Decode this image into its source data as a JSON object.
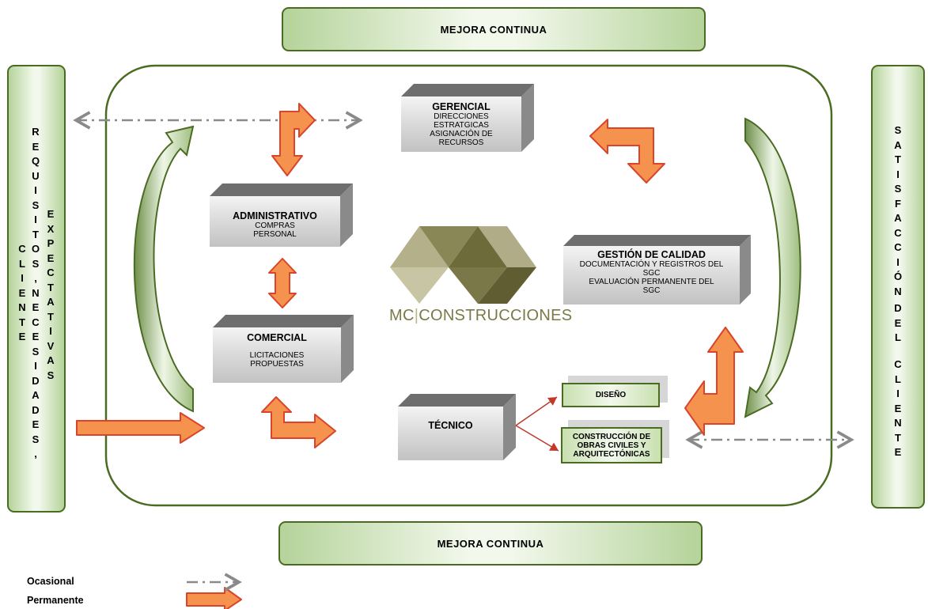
{
  "top_banner": "MEJORA  CONTINUA",
  "bottom_banner": "MEJORA  CONTINUA",
  "left_column_1": [
    "C",
    "L",
    "I",
    "E",
    "N",
    "T",
    "E"
  ],
  "left_column_2": [
    "R",
    "E",
    "Q",
    "U",
    "I",
    "S",
    "I",
    "T",
    "O",
    "S",
    ",",
    "N",
    "E",
    "C",
    "E",
    "S",
    "I",
    "D",
    "A",
    "D",
    "E",
    "S",
    ","
  ],
  "left_column_3": [
    "E",
    "X",
    "P",
    "E",
    "C",
    "T",
    "A",
    "T",
    "I",
    "V",
    "A",
    "S"
  ],
  "right_column_1": [
    "S",
    "A",
    "T",
    "I",
    "S",
    "F",
    "A",
    "C",
    "C",
    "I",
    "Ó",
    "N"
  ],
  "right_column_2": [
    "D",
    "E",
    "L"
  ],
  "right_column_3": [
    "C",
    "L",
    "I",
    "E",
    "N",
    "T",
    "E"
  ],
  "gerencial": {
    "title": "GERENCIAL",
    "lines": [
      "DIRECCIONES",
      "ESTRATGICAS",
      "ASIGNACIÓN  DE",
      "RECURSOS"
    ]
  },
  "administrativo": {
    "title": "ADMINISTRATIVO",
    "lines": [
      "COMPRAS",
      "PERSONAL"
    ]
  },
  "comercial": {
    "title": "COMERCIAL",
    "lines": [
      "LICITACIONES",
      "PROPUESTAS"
    ]
  },
  "gestion": {
    "title": "GESTIÓN  DE CALIDAD",
    "lines": [
      "DOCUMENTACIÓN  Y REGISTROS  DEL",
      "SGC",
      "EVALUACIÓN  PERMANENTE  DEL",
      "SGC"
    ]
  },
  "tecnico": {
    "title": "TÉCNICO"
  },
  "diseno": "DISEÑO",
  "construccion": [
    "CONSTRUCCIÓN DE",
    "OBRAS CIVILES Y",
    "ARQUITECTÓNICAS"
  ],
  "logo": {
    "mc": "MC",
    "name": "CONSTRUCCIONES"
  },
  "legend": {
    "occasional": "Ocasional",
    "permanent": "Permanente"
  },
  "colors": {
    "green_border": "#4a6b22",
    "orange_fill": "#f5924d",
    "orange_stroke": "#d9452b",
    "dashed_gray": "#8a8a8a",
    "logo_olive": "#7a7a46"
  }
}
